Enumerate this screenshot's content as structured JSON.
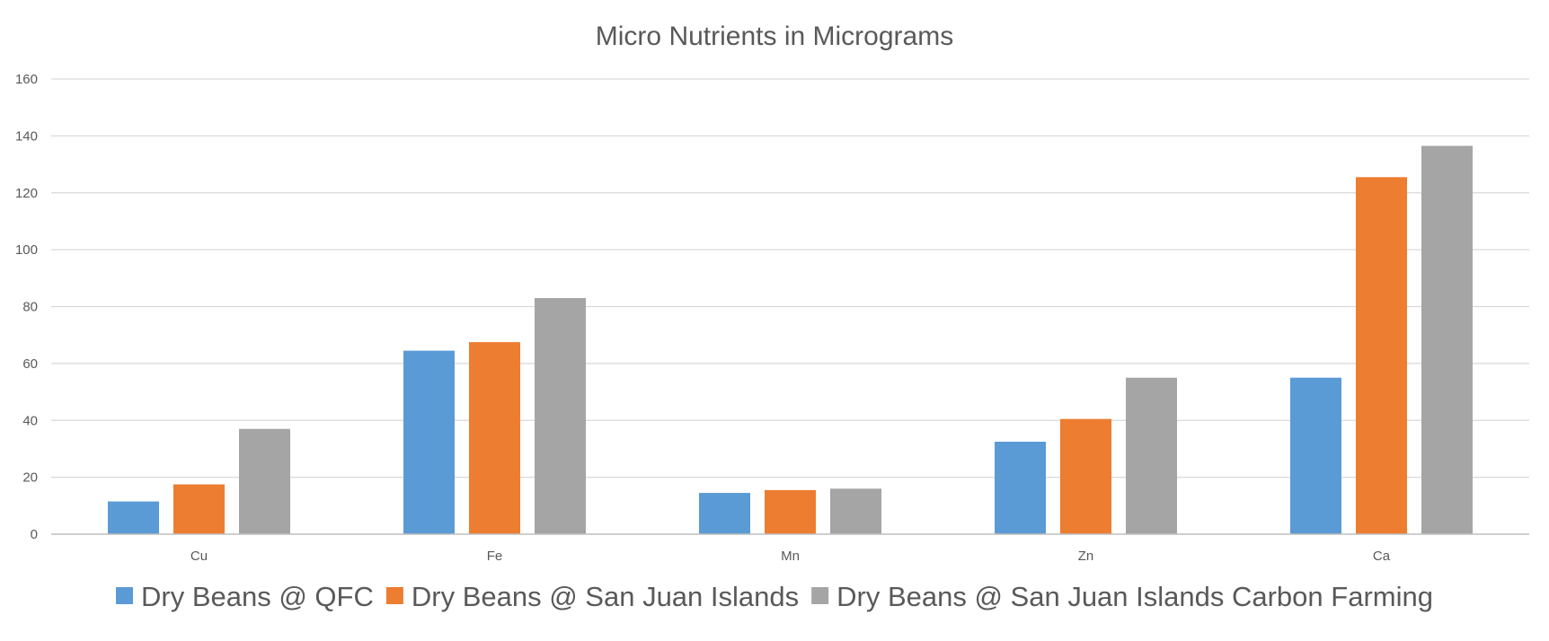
{
  "chart_data": {
    "type": "bar",
    "title": "Micro Nutrients in Micrograms",
    "xlabel": "",
    "ylabel": "",
    "categories": [
      "Cu",
      "Fe",
      "Mn",
      "Zn",
      "Ca"
    ],
    "series": [
      {
        "name": "Dry Beans @ QFC",
        "color": "#5b9bd5",
        "values": [
          11.5,
          64.5,
          14.5,
          32.5,
          55
        ]
      },
      {
        "name": "Dry Beans @ San Juan Islands",
        "color": "#ed7d31",
        "values": [
          17.5,
          67.5,
          15.5,
          40.5,
          125.5
        ]
      },
      {
        "name": "Dry Beans @ San Juan Islands Carbon Farming",
        "color": "#a5a5a5",
        "values": [
          37,
          83,
          16,
          55,
          136.5
        ]
      }
    ],
    "ylim": [
      0,
      160
    ],
    "yticks": [
      "0",
      "20",
      "40",
      "60",
      "80",
      "100",
      "120",
      "140",
      "160"
    ],
    "grid": true,
    "legend_position": "bottom"
  }
}
